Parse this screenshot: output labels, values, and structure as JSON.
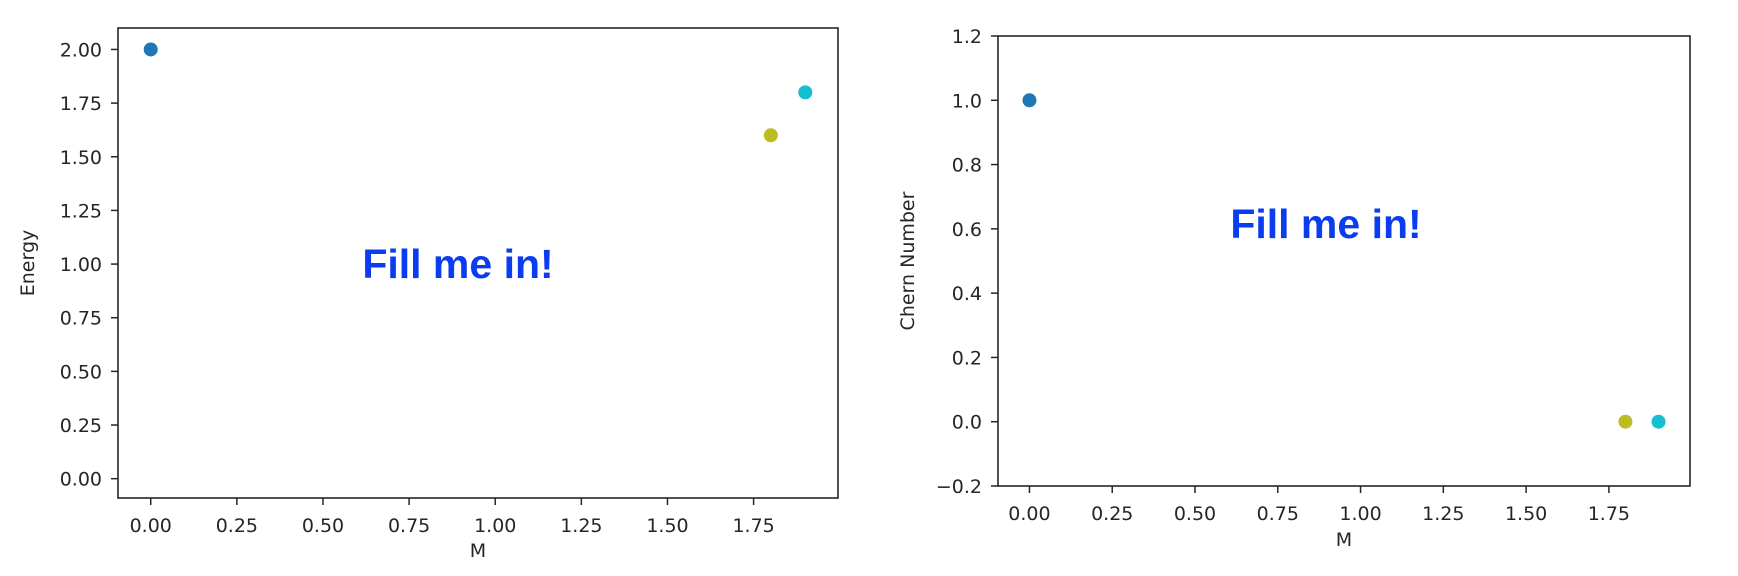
{
  "chart_data": [
    {
      "type": "scatter",
      "xlabel": "M",
      "ylabel": "Energy",
      "xlim": [
        -0.095,
        1.995
      ],
      "ylim": [
        -0.09,
        2.1
      ],
      "xticks": [
        0.0,
        0.25,
        0.5,
        0.75,
        1.0,
        1.25,
        1.5,
        1.75
      ],
      "xtick_labels": [
        "0.00",
        "0.25",
        "0.50",
        "0.75",
        "1.00",
        "1.25",
        "1.50",
        "1.75"
      ],
      "yticks": [
        0.0,
        0.25,
        0.5,
        0.75,
        1.0,
        1.25,
        1.5,
        1.75,
        2.0
      ],
      "ytick_labels": [
        "0.00",
        "0.25",
        "0.50",
        "0.75",
        "1.00",
        "1.25",
        "1.50",
        "1.75",
        "2.00"
      ],
      "points": [
        {
          "x": 0.0,
          "y": 2.0,
          "color": "#1f77b4"
        },
        {
          "x": 1.8,
          "y": 1.6,
          "color": "#bcbd22"
        },
        {
          "x": 1.9,
          "y": 1.8,
          "color": "#17becf"
        }
      ],
      "annotation": {
        "text": "Fill me in!",
        "color": "#0a3cf0"
      },
      "grid": false
    },
    {
      "type": "scatter",
      "xlabel": "M",
      "ylabel": "Chern Number",
      "xlim": [
        -0.095,
        1.995
      ],
      "ylim": [
        -0.2,
        1.2
      ],
      "xticks": [
        0.0,
        0.25,
        0.5,
        0.75,
        1.0,
        1.25,
        1.5,
        1.75
      ],
      "xtick_labels": [
        "0.00",
        "0.25",
        "0.50",
        "0.75",
        "1.00",
        "1.25",
        "1.50",
        "1.75"
      ],
      "yticks": [
        -0.2,
        0.0,
        0.2,
        0.4,
        0.6,
        0.8,
        1.0,
        1.2
      ],
      "ytick_labels": [
        "−0.2",
        "0.0",
        "0.2",
        "0.4",
        "0.6",
        "0.8",
        "1.0",
        "1.2"
      ],
      "points": [
        {
          "x": 0.0,
          "y": 1.0,
          "color": "#1f77b4"
        },
        {
          "x": 1.8,
          "y": 0.0,
          "color": "#bcbd22"
        },
        {
          "x": 1.9,
          "y": 0.0,
          "color": "#17becf"
        }
      ],
      "annotation": {
        "text": "Fill me in!",
        "color": "#0a3cf0"
      },
      "grid": false
    }
  ]
}
